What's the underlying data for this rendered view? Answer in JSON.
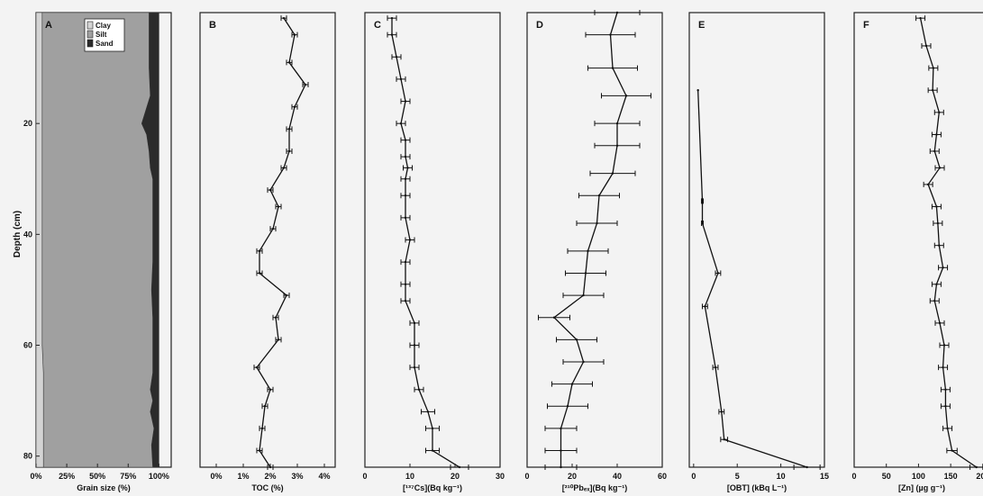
{
  "figure": {
    "y_axis_label": "Depth (cm)"
  },
  "chart_data": [
    {
      "panel": "A",
      "type": "area",
      "xlabel": "Grain size (%)",
      "ylabel": "Depth (cm)",
      "xlim": [
        0,
        110
      ],
      "ylim": [
        0,
        82
      ],
      "x_ticks": [
        0,
        25,
        50,
        75,
        100
      ],
      "x_tick_labels": [
        "0%",
        "25%",
        "50%",
        "75%",
        "100%"
      ],
      "y_ticks": [
        20,
        40,
        60,
        80
      ],
      "y_tick_labels": [
        "20",
        "40",
        "60",
        "80"
      ],
      "legend_placement": "top-right",
      "depth": [
        0,
        5,
        10,
        15,
        20,
        22,
        25,
        28,
        30,
        35,
        40,
        45,
        50,
        55,
        60,
        65,
        68,
        70,
        72,
        75,
        78,
        82
      ],
      "series": [
        {
          "name": "Clay",
          "color": "#d4d4d4",
          "cumulative": [
            5,
            5,
            5,
            5,
            5,
            5,
            5,
            5,
            5,
            5,
            5,
            5,
            5,
            5,
            5,
            6,
            6,
            6,
            6,
            6,
            6,
            6
          ]
        },
        {
          "name": "Silt",
          "color": "#a0a0a0",
          "cumulative": [
            92,
            92,
            92,
            93,
            86,
            90,
            92,
            93,
            95,
            95,
            95,
            95,
            94,
            95,
            95,
            95,
            93,
            95,
            93,
            96,
            94,
            95
          ]
        },
        {
          "name": "Sand",
          "color": "#2b2b2b",
          "cumulative": [
            100,
            100,
            100,
            100,
            100,
            100,
            100,
            100,
            100,
            100,
            100,
            100,
            100,
            100,
            100,
            100,
            100,
            100,
            100,
            100,
            100,
            100
          ]
        }
      ]
    },
    {
      "panel": "B",
      "type": "line",
      "xlabel": "TOC (%)",
      "xlim": [
        -0.6,
        4.4
      ],
      "ylim": [
        0,
        82
      ],
      "x_ticks": [
        0,
        1,
        2,
        3,
        4
      ],
      "x_tick_labels": [
        "0%",
        "1%",
        "2%",
        "3%",
        "4%"
      ],
      "depth": [
        1,
        4,
        9,
        13,
        17,
        21,
        25,
        28,
        32,
        35,
        39,
        43,
        47,
        51,
        55,
        59,
        64,
        68,
        71,
        75,
        79,
        82
      ],
      "values": [
        2.5,
        2.9,
        2.7,
        3.3,
        2.9,
        2.7,
        2.7,
        2.5,
        2.0,
        2.3,
        2.1,
        1.6,
        1.6,
        2.6,
        2.2,
        2.3,
        1.5,
        2.0,
        1.8,
        1.7,
        1.6,
        2.0
      ],
      "error": [
        0.1,
        0.1,
        0.1,
        0.1,
        0.1,
        0.1,
        0.1,
        0.1,
        0.1,
        0.1,
        0.1,
        0.1,
        0.1,
        0.1,
        0.1,
        0.1,
        0.1,
        0.1,
        0.1,
        0.1,
        0.1,
        0.1
      ]
    },
    {
      "panel": "C",
      "type": "line",
      "xlabel": "[¹³⁷Cs](Bq kg⁻¹)",
      "xlim": [
        0,
        30
      ],
      "ylim": [
        0,
        82
      ],
      "x_ticks": [
        0,
        10,
        20,
        30
      ],
      "x_tick_labels": [
        "0",
        "10",
        "20",
        "30"
      ],
      "depth": [
        1,
        4,
        8,
        12,
        16,
        20,
        23,
        26,
        28,
        30,
        33,
        37,
        41,
        45,
        49,
        52,
        56,
        60,
        64,
        68,
        72,
        75,
        79,
        82
      ],
      "values": [
        6,
        6,
        7,
        8,
        9,
        8,
        9,
        9,
        9.5,
        9,
        9,
        9,
        10,
        9,
        9,
        9,
        11,
        11,
        11,
        12,
        14,
        15,
        15,
        21
      ],
      "error": [
        1,
        1,
        1,
        1,
        1,
        1,
        1,
        1,
        1,
        1,
        1,
        1,
        1,
        1,
        1,
        1,
        1,
        1,
        1,
        1,
        1.5,
        1.5,
        1.5,
        2
      ]
    },
    {
      "panel": "D",
      "type": "line",
      "xlabel": "[²¹⁰Pbₑₓ](Bq kg⁻¹)",
      "xlim": [
        0,
        60
      ],
      "ylim": [
        0,
        82
      ],
      "x_ticks": [
        0,
        20,
        40,
        60
      ],
      "x_tick_labels": [
        "0",
        "20",
        "40",
        "60"
      ],
      "depth": [
        0,
        4,
        10,
        15,
        20,
        24,
        29,
        33,
        38,
        43,
        47,
        51,
        55,
        59,
        63,
        67,
        71,
        75,
        79,
        82
      ],
      "values": [
        40,
        37,
        38,
        44,
        40,
        40,
        38,
        32,
        31,
        27,
        26,
        25,
        12,
        22,
        25,
        20,
        18,
        15,
        15,
        15
      ],
      "error": [
        10,
        11,
        11,
        11,
        10,
        10,
        10,
        9,
        9,
        9,
        9,
        9,
        7,
        9,
        9,
        9,
        9,
        7,
        7,
        7
      ]
    },
    {
      "panel": "E",
      "type": "line",
      "xlabel": "[OBT] (kBq L⁻¹)",
      "xlim": [
        -0.5,
        15
      ],
      "ylim": [
        0,
        82
      ],
      "x_ticks": [
        0,
        5,
        10,
        15
      ],
      "x_tick_labels": [
        "0",
        "5",
        "10",
        "15"
      ],
      "depth": [
        14,
        34,
        38,
        47,
        53,
        64,
        72,
        77,
        82
      ],
      "values": [
        0.5,
        1,
        1,
        2.8,
        1.3,
        2.5,
        3.2,
        3.5,
        13
      ],
      "error": [
        0,
        0.1,
        0.1,
        0.3,
        0.3,
        0.3,
        0.3,
        0.4,
        1.5
      ]
    },
    {
      "panel": "F",
      "type": "line",
      "xlabel": "[Zn] (µg g⁻¹)",
      "xlim": [
        0,
        210
      ],
      "ylim": [
        0,
        82
      ],
      "x_ticks": [
        0,
        50,
        100,
        150,
        200
      ],
      "x_tick_labels": [
        "0",
        "50",
        "100",
        "150",
        "200"
      ],
      "depth": [
        1,
        6,
        10,
        14,
        18,
        22,
        25,
        28,
        31,
        35,
        38,
        42,
        46,
        49,
        52,
        56,
        60,
        64,
        68,
        71,
        75,
        79,
        82
      ],
      "values": [
        103,
        112,
        123,
        122,
        132,
        128,
        125,
        133,
        115,
        128,
        130,
        132,
        138,
        128,
        125,
        133,
        140,
        138,
        142,
        142,
        145,
        152,
        190
      ],
      "error": [
        7,
        7,
        7,
        7,
        7,
        7,
        7,
        7,
        7,
        7,
        7,
        7,
        7,
        7,
        7,
        7,
        7,
        7,
        7,
        7,
        7,
        8,
        10
      ]
    }
  ]
}
